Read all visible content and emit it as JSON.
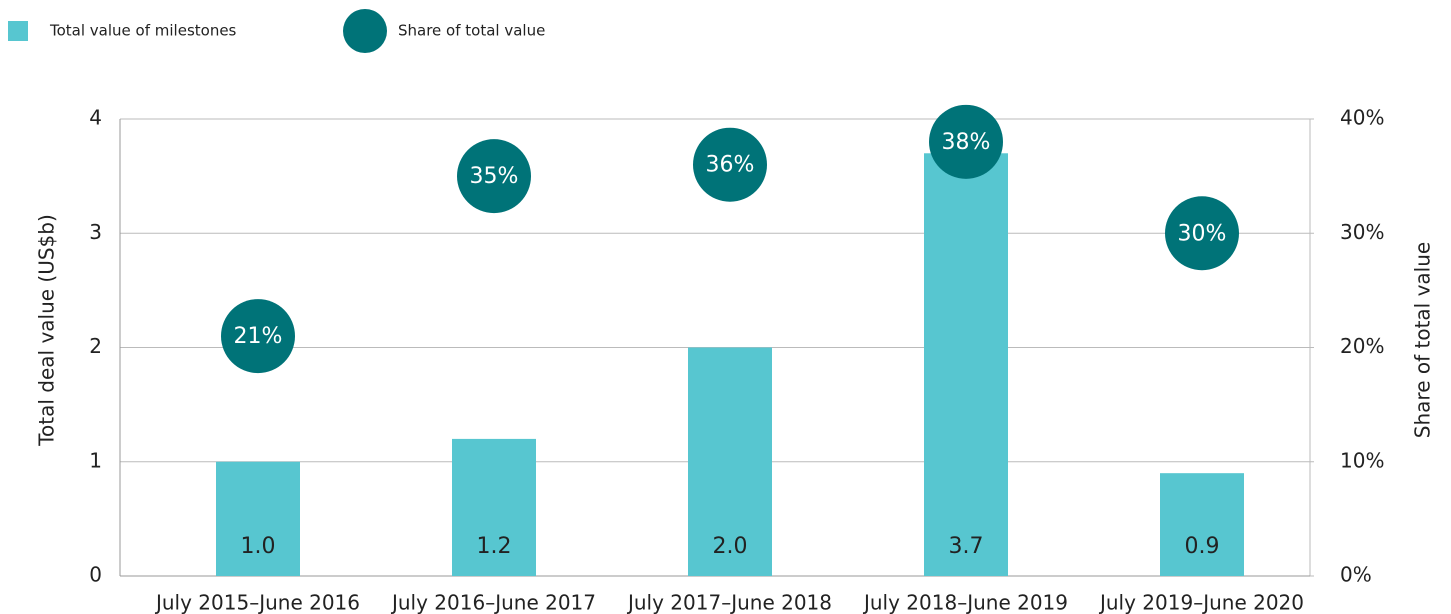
{
  "chart_data": {
    "type": "bar",
    "categories": [
      "July 2015–June 2016",
      "July 2016–June 2017",
      "July 2017–June 2018",
      "July 2018–June 2019",
      "July 2019–June 2020"
    ],
    "series": [
      {
        "name": "Total value of milestones",
        "type": "bar",
        "color": "#57c6d0",
        "values": [
          1.0,
          1.2,
          2.0,
          3.7,
          0.9
        ],
        "value_labels": [
          "1.0",
          "1.2",
          "2.0",
          "3.7",
          "0.9"
        ]
      },
      {
        "name": "Share of total value",
        "type": "scatter",
        "axis": "y2",
        "color": "#007378",
        "values": [
          21,
          35,
          36,
          38,
          30
        ],
        "value_labels": [
          "21%",
          "35%",
          "36%",
          "38%",
          "30%"
        ]
      }
    ],
    "y_label": "Total deal value (US$b)",
    "y2_label": "Share of total value",
    "ylim": [
      0,
      4
    ],
    "yticks": [
      0,
      1,
      2,
      3,
      4
    ],
    "y2lim": [
      0,
      40
    ],
    "y2ticks": [
      {
        "value": 0,
        "label": "0%"
      },
      {
        "value": 10,
        "label": "10%"
      },
      {
        "value": 20,
        "label": "20%"
      },
      {
        "value": 30,
        "label": "30%"
      },
      {
        "value": 40,
        "label": "40%"
      }
    ],
    "grid": true,
    "legend": "top-left"
  }
}
